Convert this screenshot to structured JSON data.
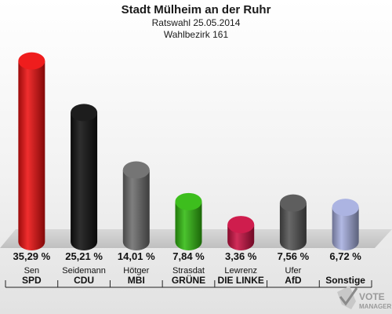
{
  "chart_data": {
    "type": "bar",
    "title": "Stadt Mülheim an der Ruhr",
    "subtitle_1": "Ratswahl 25.05.2014",
    "subtitle_2": "Wahlbezirk 161",
    "categories": [
      "SPD",
      "CDU",
      "MBI",
      "GRÜNE",
      "DIE LINKE",
      "AfD",
      "Sonstige"
    ],
    "candidates": [
      "Sen",
      "Seidemann",
      "Hötger",
      "Strasdat",
      "Lewrenz",
      "Ufer",
      ""
    ],
    "values": [
      35.29,
      25.21,
      14.01,
      7.84,
      3.36,
      7.56,
      6.72
    ],
    "value_labels": [
      "35,29 %",
      "25,21 %",
      "14,01 %",
      "7,84 %",
      "3,36 %",
      "7,56 %",
      "6,72 %"
    ],
    "colors": [
      "#ee1111",
      "#111111",
      "#6e6e6e",
      "#33bb11",
      "#cc1144",
      "#555555",
      "#a8b0e0"
    ],
    "ylim": [
      0,
      36
    ]
  },
  "logo": {
    "line1": "VOTE",
    "line2": "MANAGER"
  }
}
